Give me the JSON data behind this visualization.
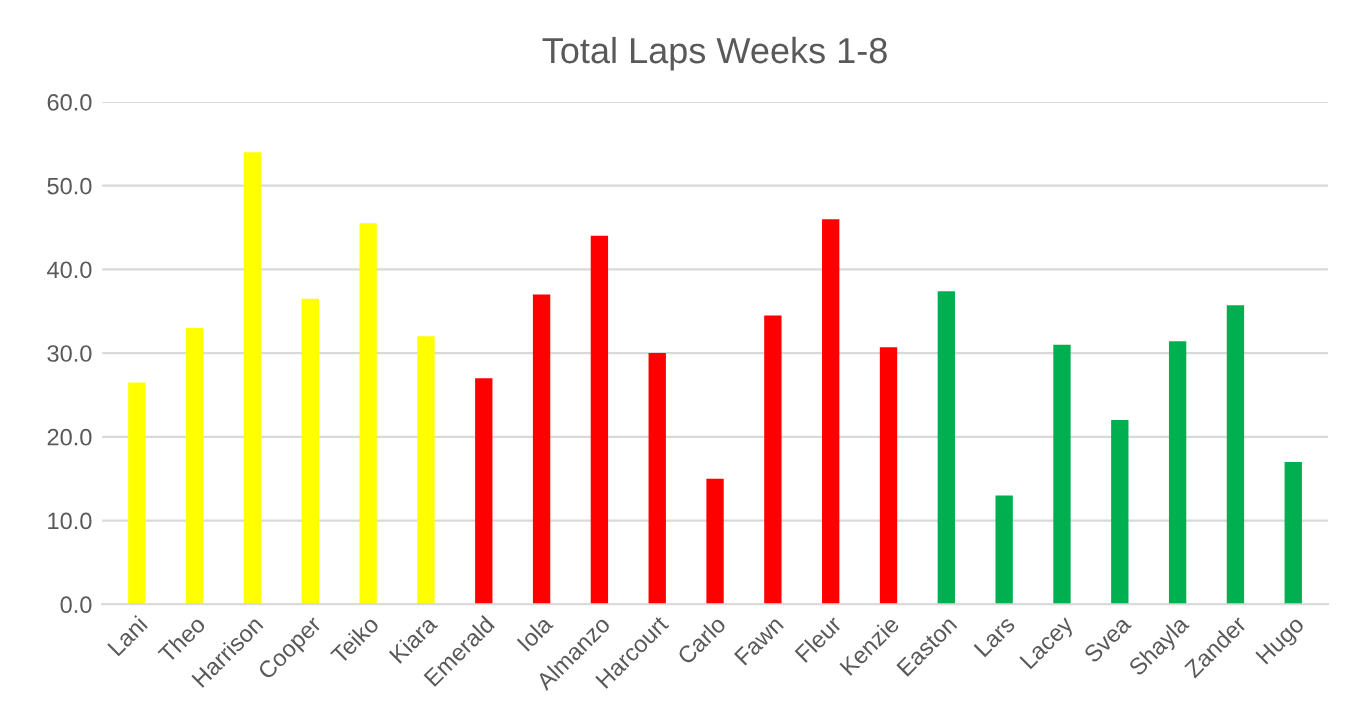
{
  "chart_data": {
    "type": "bar",
    "title": "Total Laps Weeks 1-8",
    "categories": [
      "Lani",
      "Theo",
      "Harrison",
      "Cooper",
      "Teiko",
      "Kiara",
      "Emerald",
      "Iola",
      "Almanzo",
      "Harcourt",
      "Carlo",
      "Fawn",
      "Fleur",
      "Kenzie",
      "Easton",
      "Lars",
      "Lacey",
      "Svea",
      "Shayla",
      "Zander",
      "Hugo"
    ],
    "values": [
      26.5,
      33.0,
      54.0,
      36.5,
      45.5,
      32.0,
      27.0,
      37.0,
      44.0,
      30.0,
      15.0,
      34.5,
      46.0,
      30.7,
      37.4,
      13.0,
      31.0,
      22.0,
      31.4,
      35.7,
      17.0
    ],
    "colors": [
      "#ffff00",
      "#ffff00",
      "#ffff00",
      "#ffff00",
      "#ffff00",
      "#ffff00",
      "#ff0000",
      "#ff0000",
      "#ff0000",
      "#ff0000",
      "#ff0000",
      "#ff0000",
      "#ff0000",
      "#ff0000",
      "#00b050",
      "#00b050",
      "#00b050",
      "#00b050",
      "#00b050",
      "#00b050",
      "#00b050"
    ],
    "ylim": [
      0,
      60
    ],
    "yticks": [
      {
        "value": 0,
        "label": "0.0"
      },
      {
        "value": 10,
        "label": "10.0"
      },
      {
        "value": 20,
        "label": "20.0"
      },
      {
        "value": 30,
        "label": "30.0"
      },
      {
        "value": 40,
        "label": "40.0"
      },
      {
        "value": 50,
        "label": "50.0"
      },
      {
        "value": 60,
        "label": "60.0"
      }
    ],
    "grid": "y"
  }
}
